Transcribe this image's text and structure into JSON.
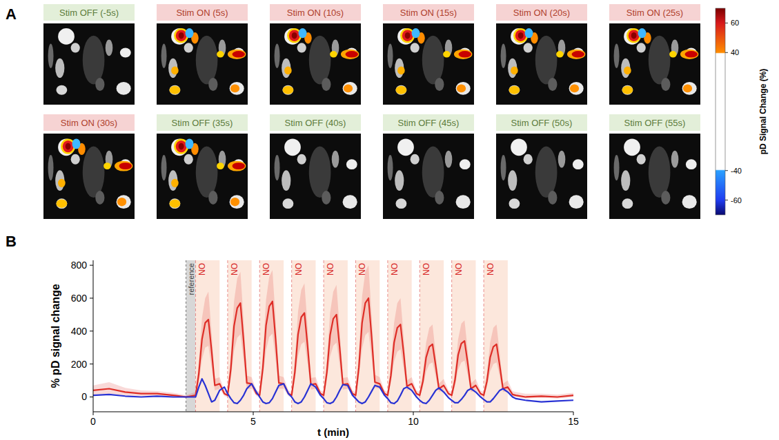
{
  "panel_labels": [
    "A",
    "B"
  ],
  "panel_a": {
    "frames": [
      {
        "label": "Stim OFF (-5s)",
        "state": "OFF",
        "active": false
      },
      {
        "label": "Stim ON (5s)",
        "state": "ON",
        "active": true
      },
      {
        "label": "Stim ON (10s)",
        "state": "ON",
        "active": true
      },
      {
        "label": "Stim ON (15s)",
        "state": "ON",
        "active": true
      },
      {
        "label": "Stim ON (20s)",
        "state": "ON",
        "active": true
      },
      {
        "label": "Stim ON (25s)",
        "state": "ON",
        "active": true
      },
      {
        "label": "Stim ON (30s)",
        "state": "ON",
        "active": true
      },
      {
        "label": "Stim OFF (35s)",
        "state": "OFF",
        "active": true
      },
      {
        "label": "Stim OFF (40s)",
        "state": "OFF",
        "active": false
      },
      {
        "label": "Stim OFF (45s)",
        "state": "OFF",
        "active": false
      },
      {
        "label": "Stim OFF (50s)",
        "state": "OFF",
        "active": false
      },
      {
        "label": "Stim OFF (55s)",
        "state": "OFF",
        "active": false
      }
    ],
    "colorbar": {
      "label": "pD Signal Change (%)",
      "range": [
        -70,
        70
      ],
      "ticks": [
        60,
        40,
        -40,
        -60
      ]
    }
  },
  "chart_data": {
    "type": "line",
    "x_label": "t (min)",
    "y_label": "% pD signal change",
    "xlim": [
      0,
      15
    ],
    "ylim": [
      -90,
      830
    ],
    "xticks": [
      0,
      5,
      10,
      15
    ],
    "yticks": [
      0,
      200,
      400,
      600,
      800
    ],
    "grid": false,
    "reference": {
      "label": "reference",
      "start": 2.9,
      "end": 3.2
    },
    "stimulus": {
      "labels": [
        "NO",
        "NO",
        "NO",
        "NO",
        "NO",
        "NO",
        "NO",
        "NO",
        "NO",
        "NO"
      ],
      "starts": [
        3.2,
        4.2,
        5.2,
        6.2,
        7.2,
        8.2,
        9.2,
        10.2,
        11.2,
        12.2
      ],
      "ends": [
        3.95,
        4.95,
        5.95,
        6.95,
        7.95,
        8.95,
        9.95,
        10.95,
        11.95,
        12.95
      ]
    },
    "x": [
      0,
      0.5,
      1,
      1.5,
      2,
      2.5,
      2.9,
      3.2,
      3.3,
      3.4,
      3.5,
      3.6,
      3.7,
      3.8,
      3.95,
      4.1,
      4.2,
      4.3,
      4.4,
      4.5,
      4.6,
      4.7,
      4.8,
      4.95,
      5.1,
      5.2,
      5.3,
      5.4,
      5.5,
      5.6,
      5.7,
      5.8,
      5.95,
      6.1,
      6.2,
      6.3,
      6.4,
      6.5,
      6.6,
      6.7,
      6.8,
      6.95,
      7.1,
      7.2,
      7.3,
      7.4,
      7.5,
      7.6,
      7.7,
      7.8,
      7.95,
      8.1,
      8.2,
      8.3,
      8.4,
      8.5,
      8.6,
      8.7,
      8.8,
      8.95,
      9.1,
      9.2,
      9.3,
      9.4,
      9.5,
      9.6,
      9.7,
      9.8,
      9.95,
      10.1,
      10.2,
      10.3,
      10.4,
      10.5,
      10.6,
      10.7,
      10.8,
      10.95,
      11.1,
      11.2,
      11.3,
      11.4,
      11.5,
      11.6,
      11.7,
      11.8,
      11.95,
      12.1,
      12.2,
      12.3,
      12.4,
      12.5,
      12.6,
      12.7,
      12.8,
      12.95,
      13.1,
      13.2,
      13.5,
      14,
      14.5,
      15
    ],
    "series": [
      {
        "color": "#de2d26",
        "values": [
          40,
          50,
          30,
          20,
          20,
          10,
          0,
          10,
          140,
          350,
          450,
          470,
          280,
          70,
          80,
          20,
          10,
          170,
          430,
          540,
          570,
          340,
          85,
          80,
          20,
          10,
          175,
          435,
          550,
          580,
          350,
          85,
          80,
          20,
          10,
          150,
          380,
          485,
          510,
          305,
          75,
          80,
          20,
          10,
          150,
          375,
          475,
          500,
          300,
          75,
          80,
          20,
          10,
          180,
          450,
          570,
          600,
          360,
          90,
          80,
          20,
          10,
          130,
          330,
          420,
          440,
          265,
          65,
          80,
          20,
          10,
          95,
          240,
          305,
          320,
          190,
          50,
          70,
          20,
          10,
          100,
          255,
          325,
          340,
          205,
          50,
          70,
          20,
          10,
          95,
          240,
          305,
          320,
          190,
          50,
          60,
          15,
          10,
          0,
          5,
          0,
          10
        ],
        "upper": [
          70,
          90,
          55,
          40,
          35,
          25,
          10,
          30,
          210,
          480,
          600,
          640,
          390,
          110,
          120,
          40,
          30,
          250,
          580,
          720,
          760,
          460,
          130,
          120,
          40,
          30,
          255,
          590,
          730,
          770,
          470,
          130,
          120,
          40,
          30,
          220,
          520,
          650,
          690,
          420,
          115,
          120,
          40,
          30,
          220,
          510,
          640,
          680,
          410,
          115,
          120,
          40,
          30,
          260,
          610,
          760,
          800,
          490,
          135,
          120,
          40,
          30,
          195,
          450,
          570,
          600,
          360,
          100,
          120,
          40,
          30,
          145,
          330,
          420,
          440,
          260,
          80,
          110,
          40,
          30,
          150,
          350,
          445,
          465,
          280,
          80,
          110,
          40,
          30,
          145,
          330,
          420,
          440,
          260,
          80,
          100,
          35,
          30,
          20,
          20,
          15,
          25
        ],
        "lower": [
          15,
          20,
          10,
          5,
          5,
          0,
          -5,
          0,
          90,
          230,
          300,
          310,
          180,
          40,
          50,
          5,
          0,
          110,
          280,
          360,
          380,
          220,
          50,
          50,
          5,
          0,
          115,
          285,
          365,
          385,
          225,
          50,
          50,
          5,
          0,
          100,
          250,
          320,
          335,
          200,
          45,
          50,
          5,
          0,
          100,
          245,
          310,
          330,
          195,
          45,
          50,
          5,
          0,
          120,
          295,
          375,
          395,
          235,
          55,
          50,
          5,
          0,
          85,
          215,
          275,
          290,
          170,
          40,
          50,
          5,
          0,
          60,
          155,
          200,
          210,
          125,
          30,
          40,
          5,
          0,
          65,
          165,
          210,
          220,
          135,
          30,
          40,
          5,
          0,
          60,
          155,
          200,
          210,
          125,
          30,
          35,
          0,
          0,
          -10,
          -5,
          -10,
          0
        ]
      },
      {
        "color": "#2832d4",
        "values": [
          10,
          15,
          5,
          0,
          5,
          0,
          0,
          0,
          60,
          110,
          70,
          20,
          -30,
          -20,
          40,
          60,
          20,
          -10,
          -35,
          -40,
          -20,
          10,
          50,
          80,
          30,
          0,
          -30,
          -40,
          -35,
          -10,
          30,
          70,
          80,
          20,
          0,
          -30,
          -40,
          -30,
          0,
          40,
          80,
          60,
          10,
          -10,
          -35,
          -40,
          -30,
          0,
          40,
          75,
          70,
          10,
          -10,
          -30,
          -40,
          -30,
          0,
          35,
          70,
          60,
          10,
          -10,
          -35,
          -40,
          -25,
          10,
          50,
          60,
          40,
          0,
          -20,
          -35,
          -40,
          -20,
          10,
          40,
          55,
          30,
          -5,
          -20,
          -35,
          -35,
          -15,
          10,
          40,
          50,
          30,
          0,
          -15,
          -30,
          -30,
          -10,
          15,
          40,
          50,
          30,
          0,
          -10,
          -20,
          -30,
          -25,
          -20
        ]
      }
    ]
  }
}
